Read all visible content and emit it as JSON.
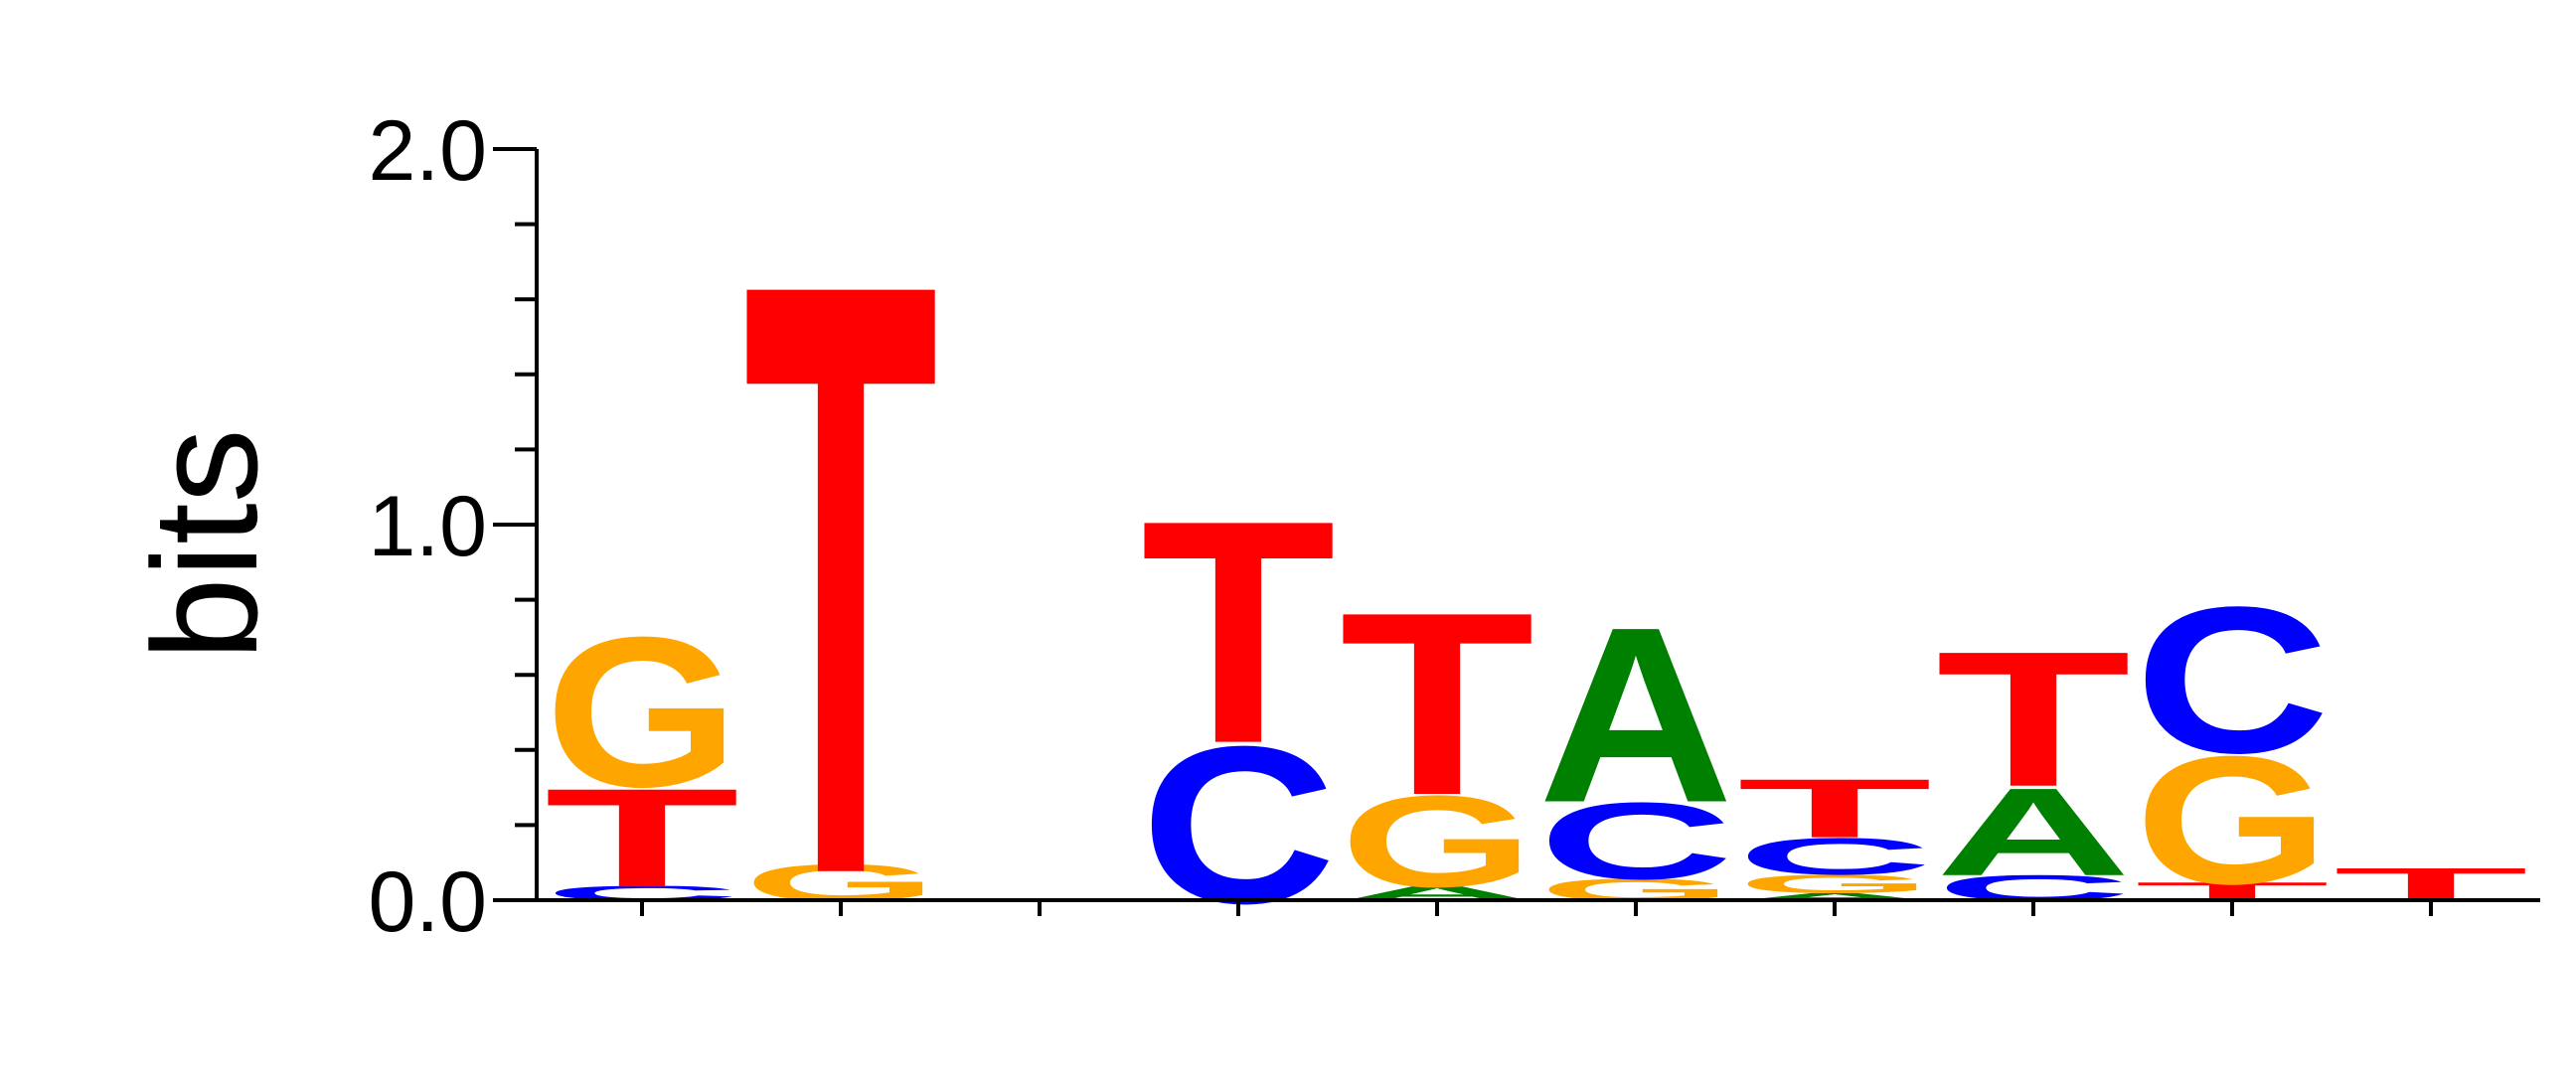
{
  "chart_data": {
    "type": "sequence-logo",
    "ylabel": "bits",
    "ylim": [
      0,
      2
    ],
    "yticks": [
      {
        "value": 0,
        "label": "0.0"
      },
      {
        "value": 1,
        "label": "1.0"
      },
      {
        "value": 2,
        "label": "2.0"
      }
    ],
    "minor_tick_step": 0.2,
    "positions": 10,
    "colors": {
      "A": "#008000",
      "C": "#0000ff",
      "G": "#ffa500",
      "T": "#ff0000"
    },
    "stacks": [
      [
        {
          "base": "C",
          "height": 0.04
        },
        {
          "base": "T",
          "height": 0.27
        },
        {
          "base": "G",
          "height": 0.41
        }
      ],
      [
        {
          "base": "G",
          "height": 0.1
        },
        {
          "base": "T",
          "height": 1.62
        }
      ],
      [],
      [
        {
          "base": "C",
          "height": 0.43
        },
        {
          "base": "T",
          "height": 0.61
        }
      ],
      [
        {
          "base": "A",
          "height": 0.04
        },
        {
          "base": "G",
          "height": 0.25
        },
        {
          "base": "T",
          "height": 0.5
        }
      ],
      [
        {
          "base": "G",
          "height": 0.06
        },
        {
          "base": "C",
          "height": 0.21
        },
        {
          "base": "A",
          "height": 0.48
        }
      ],
      [
        {
          "base": "A",
          "height": 0.02
        },
        {
          "base": "G",
          "height": 0.05
        },
        {
          "base": "C",
          "height": 0.1
        },
        {
          "base": "T",
          "height": 0.16
        }
      ],
      [
        {
          "base": "C",
          "height": 0.07
        },
        {
          "base": "A",
          "height": 0.24
        },
        {
          "base": "T",
          "height": 0.37
        }
      ],
      [
        {
          "base": "T",
          "height": 0.05
        },
        {
          "base": "G",
          "height": 0.35
        },
        {
          "base": "C",
          "height": 0.4
        }
      ],
      [
        {
          "base": "T",
          "height": 0.09
        }
      ]
    ]
  }
}
